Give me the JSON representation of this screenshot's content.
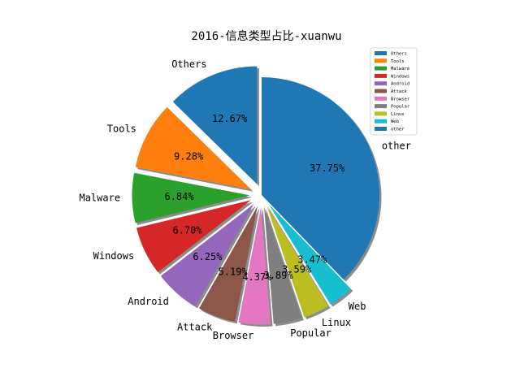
{
  "chart_data": {
    "type": "pie",
    "title": "2016-信息类型占比-xuanwu",
    "slices": [
      {
        "label": "Others",
        "value": 12.67,
        "pct_text": "12.67%",
        "color": "#1f77b4",
        "exploded": true
      },
      {
        "label": "Tools",
        "value": 9.28,
        "pct_text": "9.28%",
        "color": "#ff7f0e",
        "exploded": true
      },
      {
        "label": "Malware",
        "value": 6.84,
        "pct_text": "6.84%",
        "color": "#2ca02c",
        "exploded": true
      },
      {
        "label": "Windows",
        "value": 6.7,
        "pct_text": "6.70%",
        "color": "#d62728",
        "exploded": true
      },
      {
        "label": "Android",
        "value": 6.25,
        "pct_text": "6.25%",
        "color": "#9467bd",
        "exploded": true
      },
      {
        "label": "Attack",
        "value": 5.19,
        "pct_text": "5.19%",
        "color": "#8c564b",
        "exploded": true
      },
      {
        "label": "Browser",
        "value": 4.37,
        "pct_text": "4.37%",
        "color": "#e377c2",
        "exploded": true
      },
      {
        "label": "Popular",
        "value": 3.89,
        "pct_text": "3.89%",
        "color": "#7f7f7f",
        "exploded": true
      },
      {
        "label": "Linux",
        "value": 3.59,
        "pct_text": "3.59%",
        "color": "#bcbd22",
        "exploded": true
      },
      {
        "label": "Web",
        "value": 3.47,
        "pct_text": "3.47%",
        "color": "#17becf",
        "exploded": true
      },
      {
        "label": "other",
        "value": 37.75,
        "pct_text": "37.75%",
        "color": "#1f77b4",
        "exploded": false
      }
    ],
    "legend": {
      "entries": [
        "Others",
        "Tools",
        "Malware",
        "Windows",
        "Android",
        "Attack",
        "Browser",
        "Popular",
        "Linux",
        "Web",
        "other"
      ],
      "placement": "top-right"
    },
    "shadow": true,
    "start_angle": 90,
    "direction": "counterclockwise"
  }
}
